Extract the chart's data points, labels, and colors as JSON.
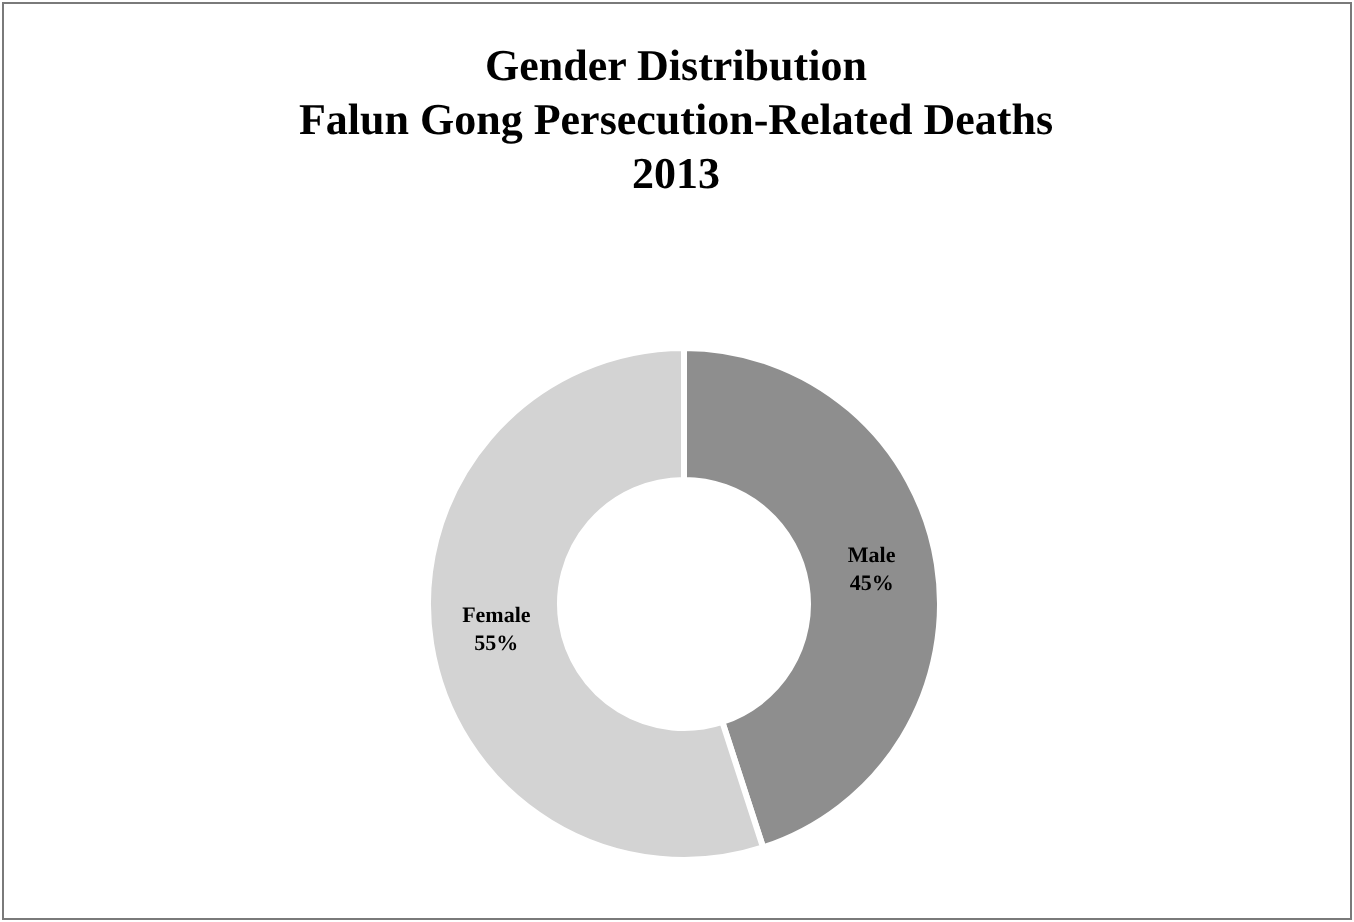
{
  "chart_data": {
    "type": "donut",
    "title": "Gender Distribution\nFalun Gong Persecution-Related Deaths\n2013",
    "categories": [
      "Male",
      "Female"
    ],
    "values": [
      45,
      55
    ],
    "colors": [
      "#8e8e8e",
      "#d3d3d3"
    ],
    "value_labels": [
      "45%",
      "55%"
    ]
  }
}
